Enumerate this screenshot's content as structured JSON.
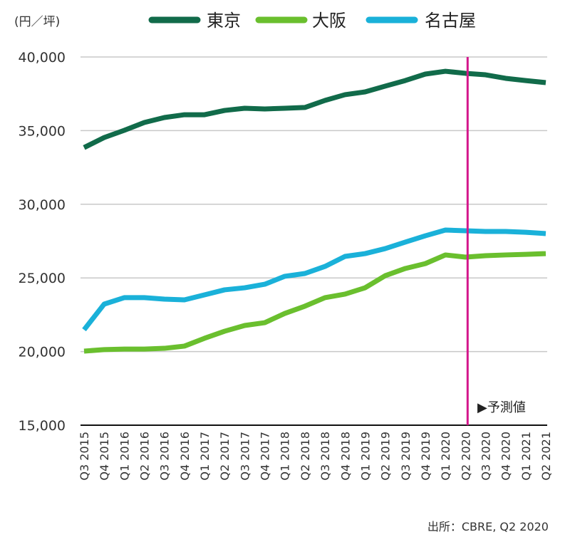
{
  "chart_data": {
    "type": "line",
    "title": "",
    "ylabel": "(円／坪)",
    "xlabel": "",
    "ylim": [
      15000,
      40000
    ],
    "yticks": [
      "15,000",
      "20,000",
      "25,000",
      "30,000",
      "35,000",
      "40,000"
    ],
    "ytick_values": [
      15000,
      20000,
      25000,
      30000,
      35000,
      40000
    ],
    "grid": "horizontal",
    "legend_position": "top",
    "categories": [
      "Q3 2015",
      "Q4 2015",
      "Q1 2016",
      "Q2 2016",
      "Q3 2016",
      "Q4 2016",
      "Q1 2017",
      "Q2 2017",
      "Q3 2017",
      "Q4 2017",
      "Q1 2018",
      "Q2 2018",
      "Q3 2018",
      "Q4 2018",
      "Q1 2019",
      "Q2 2019",
      "Q3 2019",
      "Q4 2019",
      "Q1 2020",
      "Q2 2020",
      "Q3 2020",
      "Q4 2020",
      "Q1 2021",
      "Q2 2021"
    ],
    "series": [
      {
        "name": "東京",
        "color": "#116b4a",
        "values": [
          33850,
          34530,
          35020,
          35550,
          35890,
          36080,
          36080,
          36370,
          36520,
          36470,
          36520,
          36570,
          37050,
          37440,
          37630,
          38020,
          38400,
          38840,
          39030,
          38890,
          38790,
          38550,
          38400,
          38260
        ]
      },
      {
        "name": "大阪",
        "color": "#6abf2e",
        "values": [
          20030,
          20130,
          20170,
          20170,
          20220,
          20370,
          20900,
          21380,
          21770,
          21960,
          22590,
          23080,
          23660,
          23900,
          24330,
          25150,
          25640,
          25970,
          26560,
          26410,
          26510,
          26560,
          26600,
          26650
        ]
      },
      {
        "name": "名古屋",
        "color": "#1ab1d9",
        "values": [
          21480,
          23220,
          23660,
          23660,
          23560,
          23510,
          23850,
          24190,
          24330,
          24570,
          25110,
          25300,
          25780,
          26460,
          26650,
          26990,
          27430,
          27860,
          28250,
          28200,
          28150,
          28150,
          28100,
          28010
        ]
      }
    ],
    "forecast_marker": {
      "at": "Q2 2020",
      "label": "▶予測値",
      "color": "#d4168b"
    },
    "source": "出所：CBRE, Q2 2020"
  }
}
